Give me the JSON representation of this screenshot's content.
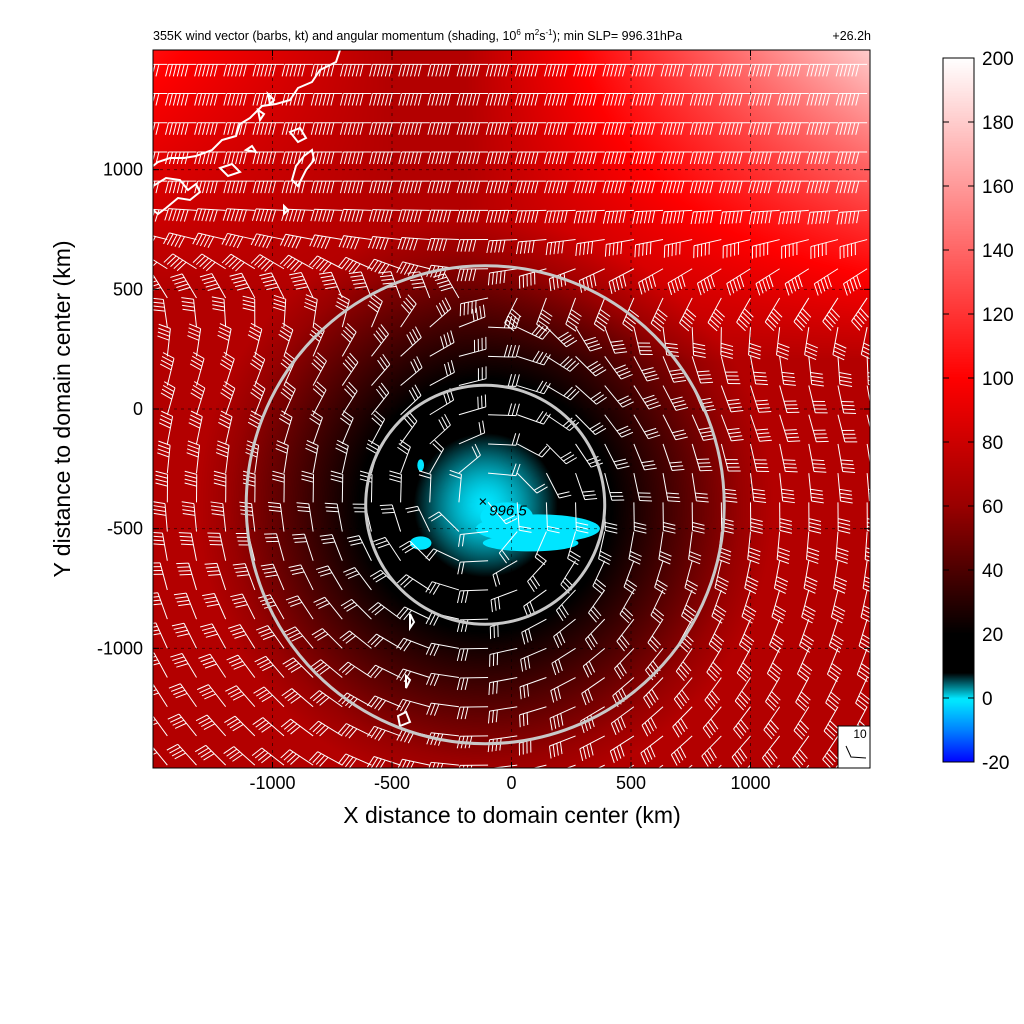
{
  "chart_data": {
    "type": "heatmap",
    "title_parts": {
      "prefix": "355K wind vector (barbs, kt) and angular momentum (shading, 10",
      "exp1": "6",
      "mid1": " m",
      "exp2": "2",
      "mid2": "s",
      "exp3": "-1",
      "suffix": "); min SLP= 996.31hPa",
      "time": "+26.2h"
    },
    "xlabel": "X distance to domain center (km)",
    "ylabel": "Y distance to domain center (km)",
    "xlim": [
      -1500,
      1500
    ],
    "ylim": [
      -1500,
      1500
    ],
    "xticks": [
      -1000,
      -500,
      0,
      500,
      1000
    ],
    "yticks": [
      1000,
      500,
      0,
      -500,
      -1000
    ],
    "grid": true,
    "colorbar": {
      "ticks": [
        200,
        180,
        160,
        140,
        120,
        100,
        80,
        60,
        40,
        20,
        0,
        -20
      ],
      "range": [
        -20,
        200
      ],
      "stops": [
        {
          "v": -20,
          "c": "#0000ff"
        },
        {
          "v": -10,
          "c": "#0080ff"
        },
        {
          "v": -1,
          "c": "#00e5ff"
        },
        {
          "v": 0,
          "c": "#00e5ff"
        },
        {
          "v": 8,
          "c": "#000000"
        },
        {
          "v": 20,
          "c": "#000000"
        },
        {
          "v": 60,
          "c": "#990000"
        },
        {
          "v": 100,
          "c": "#ff0000"
        },
        {
          "v": 200,
          "c": "#ffffff"
        }
      ]
    },
    "storm_center_km": [
      -110,
      -400
    ],
    "circles_radius_km": [
      500,
      1000
    ],
    "annotation": {
      "text": "996.5",
      "marker": "×"
    },
    "reference_barb_label": "10",
    "field": {
      "center_value": 0,
      "ring_value": 18,
      "ring_radius_km": 500,
      "far_value": 70,
      "northeast_boost": 110,
      "northwest_boost": 35
    },
    "negative_patches": [
      {
        "cx": 110,
        "cy": -500,
        "rx": 260,
        "ry": 60
      },
      {
        "cx": -20,
        "cy": -450,
        "rx": 110,
        "ry": 60
      },
      {
        "cx": 80,
        "cy": -560,
        "rx": 200,
        "ry": 35
      },
      {
        "cx": -380,
        "cy": -560,
        "rx": 45,
        "ry": 28
      },
      {
        "cx": -380,
        "cy": -235,
        "rx": 14,
        "ry": 25
      }
    ]
  },
  "colors": {
    "circle": "#c8c8c8",
    "barb": "#ffffff",
    "coast": "#ffffff",
    "negative": "#00e5ff"
  }
}
